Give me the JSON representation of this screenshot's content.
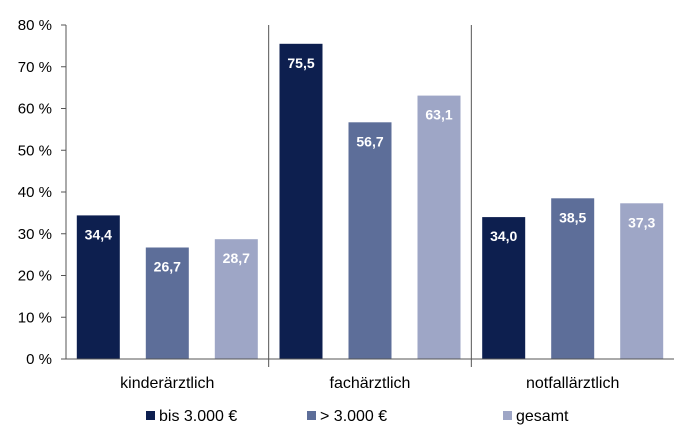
{
  "chart_data": {
    "type": "bar",
    "categories": [
      "kinderärztlich",
      "fachärztlich",
      "notfallärztlich"
    ],
    "series": [
      {
        "name": "bis 3.000 €",
        "values": [
          34.4,
          75.5,
          34.0
        ],
        "labels": [
          "34,4",
          "75,5",
          "34,0"
        ],
        "color": "#0d1f4f"
      },
      {
        "name": "> 3.000 €",
        "values": [
          26.7,
          56.7,
          38.5
        ],
        "labels": [
          "26,7",
          "56,7",
          "38,5"
        ],
        "color": "#5d6e99"
      },
      {
        "name": "gesamt",
        "values": [
          28.7,
          63.1,
          37.3
        ],
        "labels": [
          "28,7",
          "63,1",
          "37,3"
        ],
        "color": "#9ea6c6"
      }
    ],
    "y_ticks": [
      0,
      10,
      20,
      30,
      40,
      50,
      60,
      70,
      80
    ],
    "y_tick_labels": [
      "0 %",
      "10 %",
      "20 %",
      "30 %",
      "40 %",
      "50 %",
      "60 %",
      "70 %",
      "80 %"
    ],
    "ylim": [
      0,
      80
    ],
    "grid": false,
    "legend_position": "bottom",
    "title": "",
    "xlabel": "",
    "ylabel": ""
  }
}
